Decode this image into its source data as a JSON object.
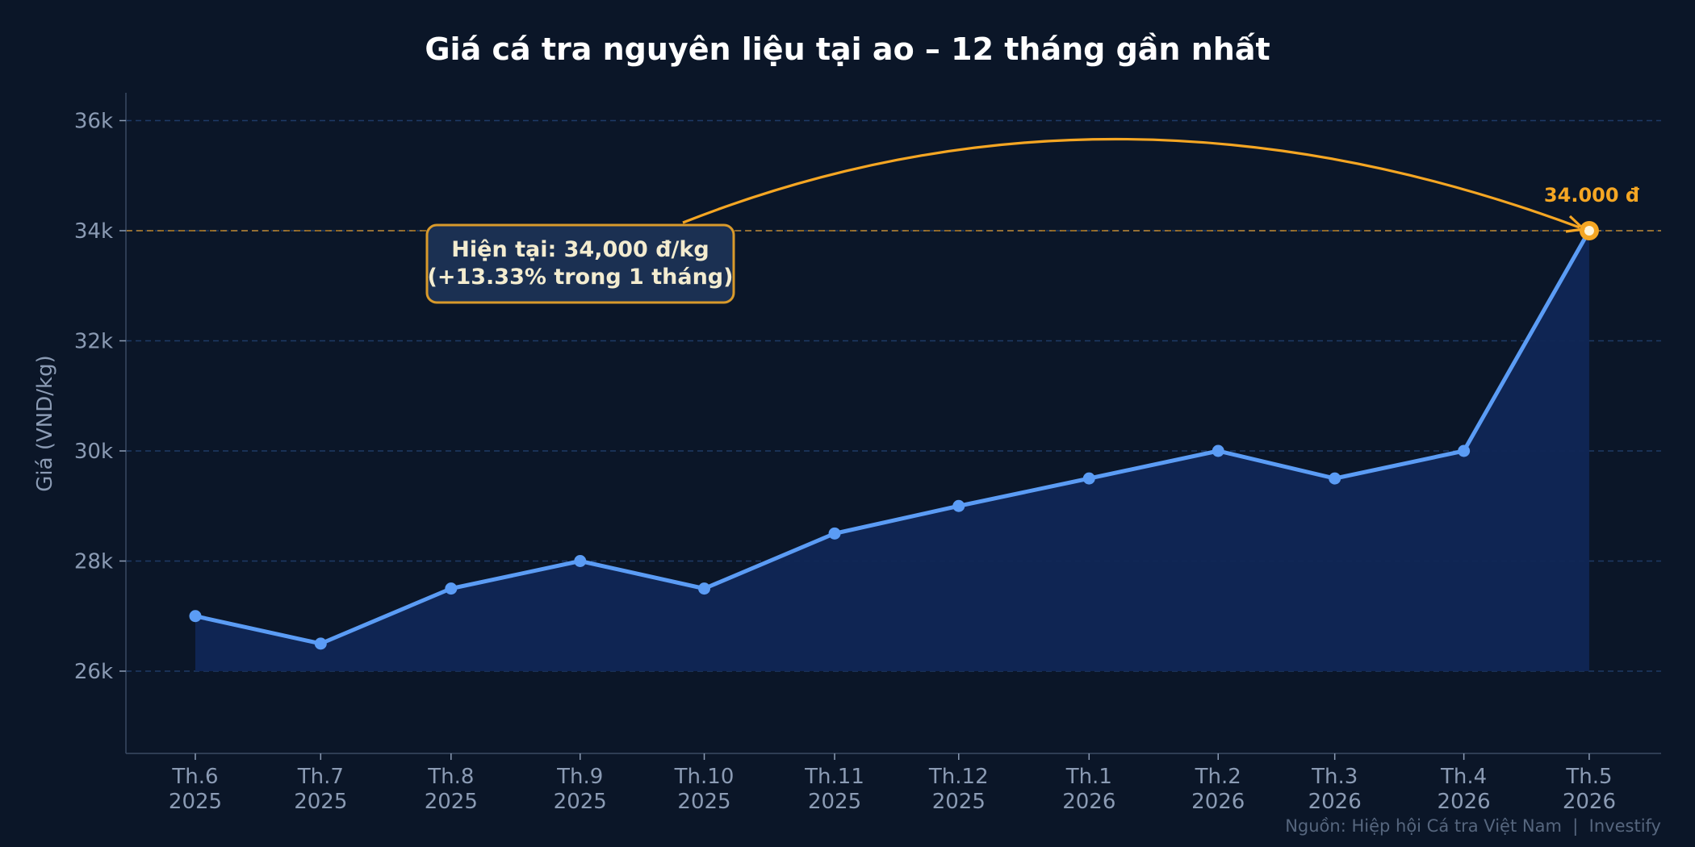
{
  "chart_data": {
    "type": "line",
    "title": "Giá cá tra nguyên liệu tại ao – 12 tháng gần nhất",
    "ylabel": "Giá (VND/kg)",
    "xlabel": "",
    "categories": [
      [
        "Th.6",
        "2025"
      ],
      [
        "Th.7",
        "2025"
      ],
      [
        "Th.8",
        "2025"
      ],
      [
        "Th.9",
        "2025"
      ],
      [
        "Th.10",
        "2025"
      ],
      [
        "Th.11",
        "2025"
      ],
      [
        "Th.12",
        "2025"
      ],
      [
        "Th.1",
        "2026"
      ],
      [
        "Th.2",
        "2026"
      ],
      [
        "Th.3",
        "2026"
      ],
      [
        "Th.4",
        "2026"
      ],
      [
        "Th.5",
        "2026"
      ]
    ],
    "x_values": [
      0,
      1,
      2.04,
      3.07,
      4.06,
      5.1,
      6.09,
      7.13,
      8.16,
      9.09,
      10.12,
      11.12
    ],
    "values": [
      27000,
      26500,
      27500,
      28000,
      27500,
      28500,
      29000,
      29500,
      30000,
      29500,
      30000,
      34000
    ],
    "ylim": [
      24500,
      36500
    ],
    "yticks": [
      26000,
      28000,
      30000,
      32000,
      34000,
      36000
    ],
    "ytick_labels": [
      "26k",
      "28k",
      "30k",
      "32k",
      "34k",
      "36k"
    ],
    "grid": true,
    "reference_line": 34000,
    "fill_baseline": 26000,
    "annotation": {
      "lines": [
        "Hiện tại: 34,000 đ/kg",
        "(+13.33% trong 1 tháng)"
      ]
    },
    "end_label": "34.000 đ",
    "source": "Nguồn: Hiệp hội Cá tra Việt Nam  |  Investify",
    "colors": {
      "background": "#0b1628",
      "line": "#5b9cf5",
      "fill": "#102655",
      "grid": "#1e3a66",
      "accent": "#f5a623",
      "annotation_bg": "#1b3052"
    }
  }
}
